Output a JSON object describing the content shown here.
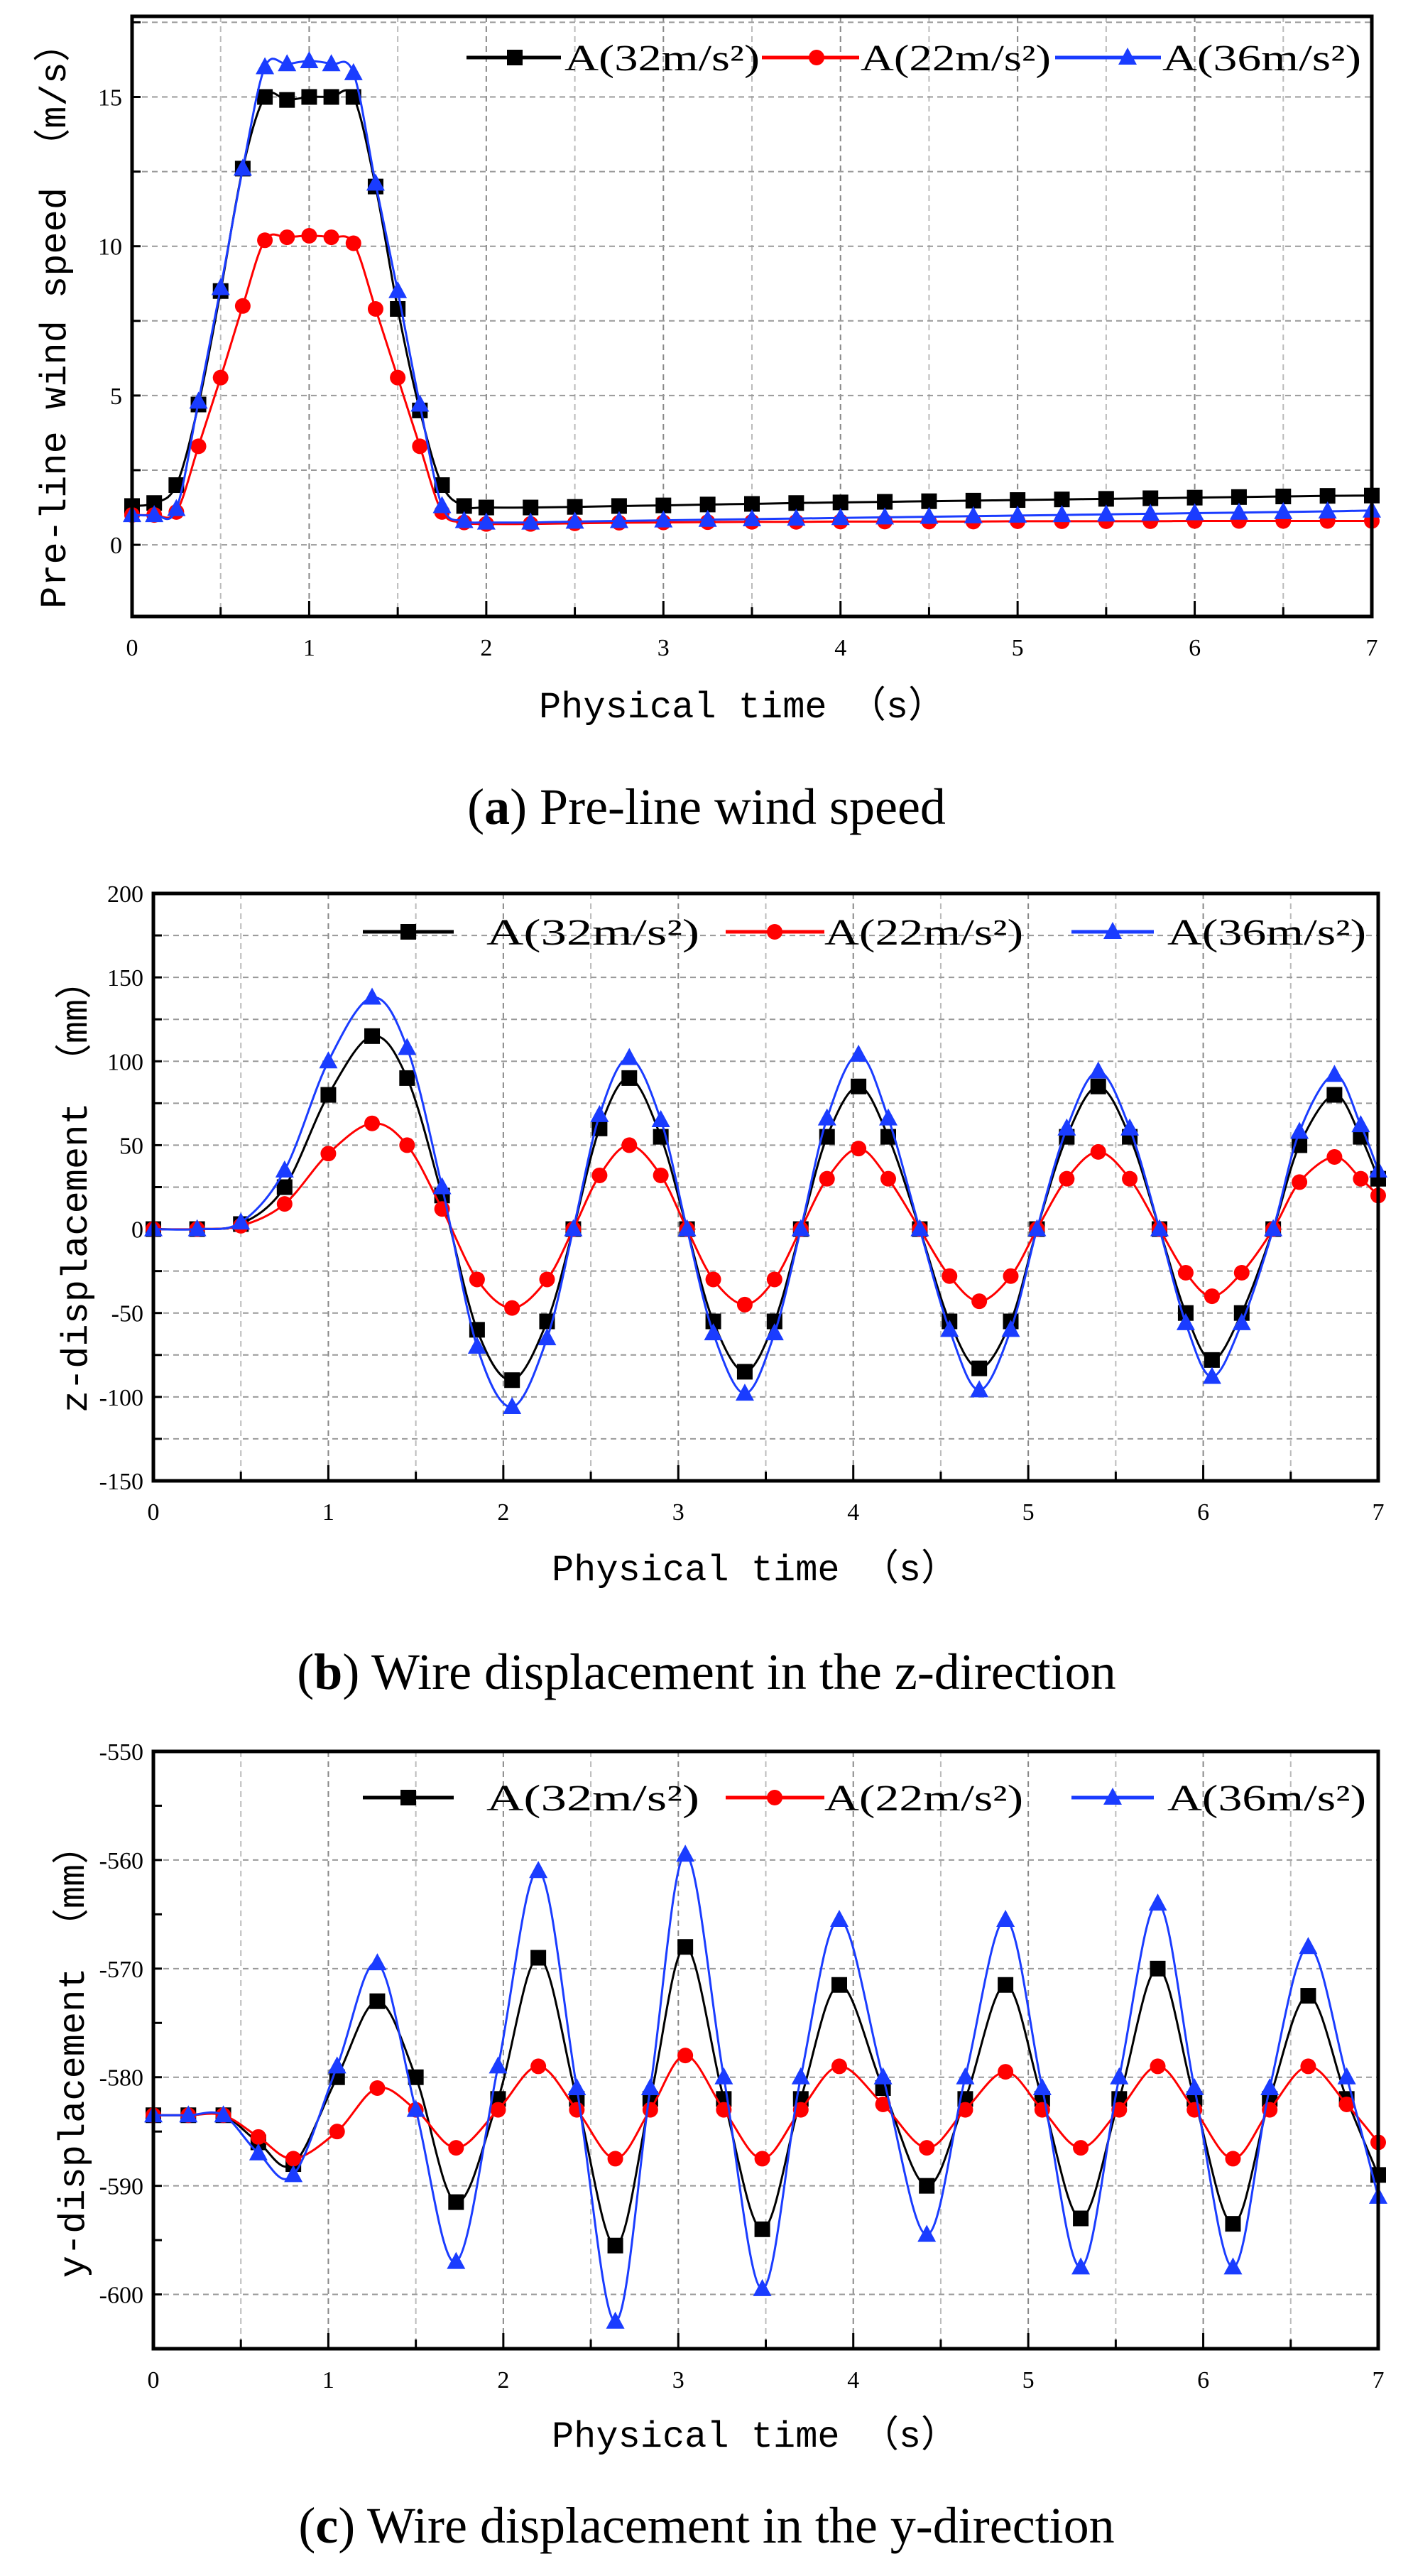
{
  "chart_data": [
    {
      "type": "line",
      "caption": {
        "open": "(",
        "letter": "a",
        "close": ")",
        "text": "Pre-line wind speed"
      },
      "xlabel": "Physical time （s）",
      "ylabel": "Pre-line wind speed （m/s）",
      "xlim": [
        0,
        7
      ],
      "ylim": [
        -2.4,
        17.7
      ],
      "xticks": [
        "0",
        "1",
        "2",
        "3",
        "4",
        "5",
        "6",
        "7"
      ],
      "yticks": [
        "0",
        "5",
        "10",
        "15"
      ],
      "grid": true,
      "legend_position": "top-right",
      "x": [
        0,
        0.125,
        0.25,
        0.375,
        0.5,
        0.625,
        0.75,
        0.875,
        1.0,
        1.125,
        1.25,
        1.375,
        1.5,
        1.625,
        1.75,
        1.875,
        2.0,
        2.25,
        2.5,
        2.75,
        3.0,
        3.25,
        3.5,
        3.75,
        4.0,
        4.25,
        4.5,
        4.75,
        5.0,
        5.25,
        5.5,
        5.75,
        6.0,
        6.25,
        6.5,
        6.75,
        7.0
      ],
      "series": [
        {
          "name": "A(32m/s²)",
          "color": "#000000",
          "marker": "square",
          "values": [
            1.3,
            1.4,
            2.0,
            4.7,
            8.5,
            12.6,
            15.0,
            14.9,
            15.0,
            15.0,
            15.0,
            12.0,
            7.9,
            4.5,
            2.0,
            1.3,
            1.25,
            1.25,
            1.27,
            1.3,
            1.32,
            1.35,
            1.37,
            1.4,
            1.42,
            1.44,
            1.46,
            1.48,
            1.5,
            1.52,
            1.54,
            1.56,
            1.58,
            1.6,
            1.62,
            1.64,
            1.65
          ]
        },
        {
          "name": "A(22m/s²)",
          "color": "#ff0000",
          "marker": "circle",
          "values": [
            1.0,
            1.0,
            1.1,
            3.3,
            5.6,
            8.0,
            10.2,
            10.3,
            10.35,
            10.3,
            10.1,
            7.9,
            5.6,
            3.3,
            1.1,
            0.75,
            0.7,
            0.7,
            0.72,
            0.74,
            0.75,
            0.76,
            0.77,
            0.77,
            0.78,
            0.78,
            0.78,
            0.78,
            0.79,
            0.79,
            0.79,
            0.79,
            0.8,
            0.8,
            0.8,
            0.8,
            0.8
          ]
        },
        {
          "name": "A(36m/s²)",
          "color": "#1a3cff",
          "marker": "triangle",
          "values": [
            1.0,
            1.0,
            1.2,
            4.8,
            8.6,
            12.6,
            16.0,
            16.1,
            16.2,
            16.1,
            15.8,
            12.1,
            8.5,
            4.7,
            1.3,
            0.8,
            0.75,
            0.75,
            0.78,
            0.8,
            0.82,
            0.84,
            0.86,
            0.88,
            0.9,
            0.92,
            0.94,
            0.96,
            0.98,
            1.0,
            1.02,
            1.04,
            1.06,
            1.08,
            1.1,
            1.12,
            1.15
          ]
        }
      ]
    },
    {
      "type": "line",
      "caption": {
        "open": "(",
        "letter": "b",
        "close": ")",
        "text": "Wire displacement in the z-direction"
      },
      "xlabel": "Physical time （s）",
      "ylabel": "z-displacement （mm）",
      "xlim": [
        0,
        7
      ],
      "ylim": [
        -150,
        200
      ],
      "xticks": [
        "0",
        "1",
        "2",
        "3",
        "4",
        "5",
        "6",
        "7"
      ],
      "yticks": [
        "-150",
        "-100",
        "-50",
        "0",
        "50",
        "100",
        "150",
        "200"
      ],
      "grid": true,
      "legend_position": "top-right",
      "x": [
        0,
        0.25,
        0.5,
        0.75,
        1.0,
        1.25,
        1.45,
        1.65,
        1.85,
        2.05,
        2.25,
        2.4,
        2.55,
        2.72,
        2.9,
        3.05,
        3.2,
        3.38,
        3.55,
        3.7,
        3.85,
        4.03,
        4.2,
        4.38,
        4.55,
        4.72,
        4.9,
        5.05,
        5.22,
        5.4,
        5.58,
        5.75,
        5.9,
        6.05,
        6.22,
        6.4,
        6.55,
        6.75,
        6.9,
        7.0
      ],
      "series": [
        {
          "name": "A(32m/s²)",
          "color": "#000000",
          "marker": "square",
          "values": [
            0,
            0,
            3,
            25,
            80,
            115,
            90,
            20,
            -60,
            -90,
            -55,
            0,
            60,
            90,
            55,
            0,
            -55,
            -85,
            -55,
            0,
            55,
            85,
            55,
            0,
            -55,
            -83,
            -55,
            0,
            55,
            85,
            55,
            0,
            -50,
            -78,
            -50,
            0,
            50,
            80,
            55,
            30
          ]
        },
        {
          "name": "A(22m/s²)",
          "color": "#ff0000",
          "marker": "circle",
          "values": [
            0,
            0,
            2,
            15,
            45,
            63,
            50,
            12,
            -30,
            -47,
            -30,
            0,
            32,
            50,
            32,
            0,
            -30,
            -45,
            -30,
            0,
            30,
            48,
            30,
            0,
            -28,
            -43,
            -28,
            0,
            30,
            46,
            30,
            0,
            -26,
            -40,
            -26,
            0,
            28,
            43,
            30,
            20
          ]
        },
        {
          "name": "A(36m/s²)",
          "color": "#1a3cff",
          "marker": "triangle",
          "values": [
            0,
            0,
            4,
            35,
            100,
            138,
            108,
            25,
            -70,
            -106,
            -65,
            0,
            68,
            102,
            65,
            0,
            -62,
            -98,
            -62,
            0,
            66,
            104,
            66,
            0,
            -60,
            -96,
            -60,
            0,
            60,
            94,
            60,
            0,
            -56,
            -88,
            -56,
            0,
            58,
            92,
            62,
            35
          ]
        }
      ]
    },
    {
      "type": "line",
      "caption": {
        "open": "(",
        "letter": "c",
        "close": ")",
        "text": "Wire displacement in the y-direction"
      },
      "xlabel": "Physical time （s）",
      "ylabel": "y-displacement （mm）",
      "xlim": [
        0,
        7
      ],
      "ylim": [
        -605,
        -550
      ],
      "xticks": [
        "0",
        "1",
        "2",
        "3",
        "4",
        "5",
        "6",
        "7"
      ],
      "yticks": [
        "-600",
        "-590",
        "-580",
        "-570",
        "-560",
        "-550"
      ],
      "grid": true,
      "legend_position": "top-right",
      "x": [
        0,
        0.2,
        0.4,
        0.6,
        0.8,
        1.05,
        1.28,
        1.5,
        1.73,
        1.97,
        2.2,
        2.42,
        2.64,
        2.84,
        3.04,
        3.26,
        3.48,
        3.7,
        3.92,
        4.17,
        4.42,
        4.64,
        4.87,
        5.08,
        5.3,
        5.52,
        5.74,
        5.95,
        6.17,
        6.38,
        6.6,
        6.82,
        7.0
      ],
      "series": [
        {
          "name": "A(32m/s²)",
          "color": "#000000",
          "marker": "square",
          "values": [
            -583.5,
            -583.5,
            -583.5,
            -586,
            -588,
            -580,
            -573,
            -580,
            -591.5,
            -582,
            -569,
            -582,
            -595.5,
            -582,
            -568,
            -582,
            -594,
            -582,
            -571.5,
            -581,
            -590,
            -582,
            -571.5,
            -582,
            -593,
            -582,
            -570,
            -582,
            -593.5,
            -582,
            -572.5,
            -582,
            -589
          ]
        },
        {
          "name": "A(22m/s²)",
          "color": "#ff0000",
          "marker": "circle",
          "values": [
            -583.5,
            -583.5,
            -583.5,
            -585.5,
            -587.5,
            -585,
            -581,
            -583,
            -586.5,
            -583,
            -579,
            -583,
            -587.5,
            -583,
            -578,
            -583,
            -587.5,
            -583,
            -579,
            -582.5,
            -586.5,
            -583,
            -579.5,
            -583,
            -586.5,
            -583,
            -579,
            -583,
            -587.5,
            -583,
            -579,
            -582.5,
            -586
          ]
        },
        {
          "name": "A(36m/s²)",
          "color": "#1a3cff",
          "marker": "triangle",
          "values": [
            -583.5,
            -583.5,
            -583.5,
            -587,
            -589,
            -579,
            -569.5,
            -583,
            -597,
            -579,
            -561,
            -581,
            -602.5,
            -581,
            -559.5,
            -580,
            -599.5,
            -580,
            -565.5,
            -580,
            -594.5,
            -580,
            -565.5,
            -581,
            -597.5,
            -580,
            -564,
            -581,
            -597.5,
            -581,
            -568,
            -580,
            -591
          ]
        }
      ]
    }
  ]
}
